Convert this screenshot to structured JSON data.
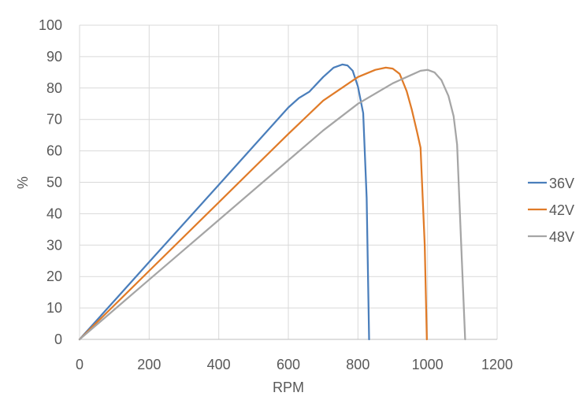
{
  "chart_data": {
    "type": "line",
    "xlabel": "RPM",
    "ylabel": "%",
    "xlim": [
      0,
      1200
    ],
    "ylim": [
      0,
      100
    ],
    "xticks": [
      0,
      200,
      400,
      600,
      800,
      1000,
      1200
    ],
    "yticks": [
      0,
      10,
      20,
      30,
      40,
      50,
      60,
      70,
      80,
      90,
      100
    ],
    "grid": true,
    "legend_position": "right",
    "series": [
      {
        "name": "36V",
        "color": "#4a7ebb",
        "points": [
          [
            0,
            0
          ],
          [
            100,
            12.3
          ],
          [
            200,
            24.6
          ],
          [
            300,
            36.9
          ],
          [
            400,
            49.2
          ],
          [
            500,
            61.5
          ],
          [
            600,
            73.8
          ],
          [
            630,
            76.8
          ],
          [
            660,
            78.8
          ],
          [
            700,
            83.5
          ],
          [
            730,
            86.5
          ],
          [
            755,
            87.5
          ],
          [
            770,
            87.2
          ],
          [
            785,
            85.5
          ],
          [
            800,
            80.5
          ],
          [
            815,
            72
          ],
          [
            825,
            45
          ],
          [
            832,
            0
          ]
        ]
      },
      {
        "name": "42V",
        "color": "#e07b28",
        "points": [
          [
            0,
            0
          ],
          [
            100,
            10.9
          ],
          [
            200,
            21.8
          ],
          [
            300,
            32.7
          ],
          [
            400,
            43.6
          ],
          [
            500,
            54.5
          ],
          [
            600,
            65.4
          ],
          [
            700,
            76
          ],
          [
            800,
            83.5
          ],
          [
            850,
            85.8
          ],
          [
            880,
            86.5
          ],
          [
            900,
            86.2
          ],
          [
            920,
            84.5
          ],
          [
            940,
            79
          ],
          [
            955,
            73
          ],
          [
            970,
            66
          ],
          [
            980,
            61
          ],
          [
            992,
            30
          ],
          [
            998,
            0
          ]
        ]
      },
      {
        "name": "48V",
        "color": "#a5a5a5",
        "points": [
          [
            0,
            0
          ],
          [
            100,
            9.5
          ],
          [
            200,
            19
          ],
          [
            300,
            28.5
          ],
          [
            400,
            38
          ],
          [
            500,
            47.5
          ],
          [
            600,
            57
          ],
          [
            700,
            66.5
          ],
          [
            800,
            75
          ],
          [
            900,
            81.5
          ],
          [
            950,
            84
          ],
          [
            980,
            85.5
          ],
          [
            1000,
            85.8
          ],
          [
            1020,
            85
          ],
          [
            1040,
            82.5
          ],
          [
            1060,
            77.5
          ],
          [
            1075,
            71
          ],
          [
            1085,
            62
          ],
          [
            1095,
            35
          ],
          [
            1108,
            0
          ]
        ]
      }
    ]
  }
}
